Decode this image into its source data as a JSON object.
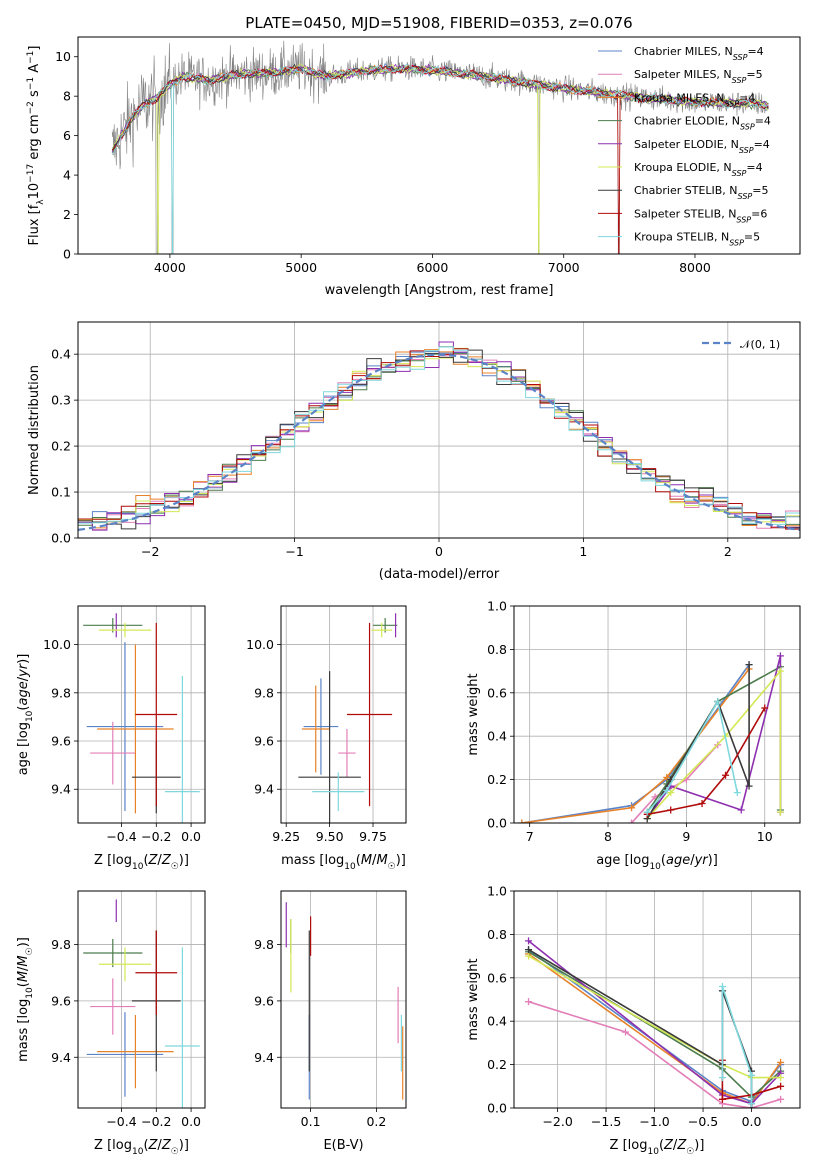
{
  "figure": {
    "title": "PLATE=0450, MJD=51908, FIBERID=0353, z=0.076"
  },
  "colors": {
    "Chabrier MILES": "#5b84c8",
    "Salpeter MILES": "#e37fb8",
    "Kroupa MILES": "#e8822a",
    "Chabrier ELODIE": "#4c7c4c",
    "Salpeter ELODIE": "#8e2fb0",
    "Kroupa ELODIE": "#d4e856",
    "Chabrier STELIB": "#3a3a3a",
    "Salpeter STELIB": "#b00a0a",
    "Kroupa STELIB": "#7fd8de",
    "data": "#808080",
    "gaussian": "#5b84c8"
  },
  "chart_data": [
    {
      "type": "line",
      "name": "spectrum",
      "title": "PLATE=0450, MJD=51908, FIBERID=0353, z=0.076",
      "xlabel": "wavelength [Angstrom, rest frame]",
      "ylabel": "Flux [f_λ 10^-17 erg cm^-2 s^-1 A^-1]",
      "xlim": [
        3300,
        8800
      ],
      "ylim": [
        0,
        11
      ],
      "xticks": [
        "4000",
        "5000",
        "6000",
        "7000",
        "8000"
      ],
      "yticks": [
        "0",
        "2",
        "4",
        "6",
        "8",
        "10"
      ],
      "legend_position": "right",
      "legend": [
        {
          "label": "Chabrier MILES, N",
          "sub": "SSP",
          "tail": "=4"
        },
        {
          "label": "Salpeter MILES, N",
          "sub": "SSP",
          "tail": "=5"
        },
        {
          "label": "Kroupa MILES, N",
          "sub": "SSP",
          "tail": "=4"
        },
        {
          "label": "Chabrier ELODIE, N",
          "sub": "SSP",
          "tail": "=4"
        },
        {
          "label": "Salpeter ELODIE, N",
          "sub": "SSP",
          "tail": "=4"
        },
        {
          "label": "Kroupa ELODIE, N",
          "sub": "SSP",
          "tail": "=4"
        },
        {
          "label": "Chabrier STELIB, N",
          "sub": "SSP",
          "tail": "=5"
        },
        {
          "label": "Salpeter STELIB, N",
          "sub": "SSP",
          "tail": "=6"
        },
        {
          "label": "Kroupa STELIB, N",
          "sub": "SSP",
          "tail": "=5"
        }
      ],
      "continuum": [
        [
          3560,
          5.2
        ],
        [
          3700,
          6.8
        ],
        [
          3800,
          7.6
        ],
        [
          3900,
          7.9
        ],
        [
          4000,
          8.6
        ],
        [
          4100,
          9.0
        ],
        [
          4300,
          8.8
        ],
        [
          4500,
          9.1
        ],
        [
          4800,
          9.2
        ],
        [
          5000,
          9.4
        ],
        [
          5200,
          9.0
        ],
        [
          5500,
          9.3
        ],
        [
          5800,
          9.4
        ],
        [
          6000,
          9.3
        ],
        [
          6300,
          9.1
        ],
        [
          6600,
          8.8
        ],
        [
          7000,
          8.4
        ],
        [
          7500,
          8.0
        ],
        [
          8000,
          7.7
        ],
        [
          8500,
          7.6
        ],
        [
          8550,
          7.5
        ]
      ]
    },
    {
      "type": "histogram",
      "name": "residuals",
      "xlabel": "(data-model)/error",
      "ylabel": "Normed distribution",
      "xlim": [
        -2.5,
        2.5
      ],
      "ylim": [
        0,
        0.47
      ],
      "xticks": [
        "−2",
        "−1",
        "0",
        "1",
        "2"
      ],
      "yticks": [
        "0.0",
        "0.1",
        "0.2",
        "0.3",
        "0.4"
      ],
      "grid": true,
      "legend_position": "top-right",
      "legend_label": "𝒩(0, 1)",
      "bin_width": 0.1
    },
    {
      "type": "scatter",
      "name": "age-vs-Z",
      "xlabel": "Z [log10(Z/Z☉)]",
      "ylabel": "age [log10(age/yr)]",
      "xlim": [
        -0.65,
        0.08
      ],
      "ylim": [
        9.26,
        10.16
      ],
      "xticks": [
        "−0.4",
        "−0.2",
        "0.0"
      ],
      "yticks": [
        "9.4",
        "9.6",
        "9.8",
        "10.0"
      ],
      "grid": true,
      "points": [
        {
          "model": "Chabrier MILES",
          "x": -0.38,
          "y": 9.66,
          "xerr": 0.22,
          "yerr": 0.35
        },
        {
          "model": "Salpeter MILES",
          "x": -0.45,
          "y": 9.55,
          "xerr": 0.13,
          "yerr": 0.13
        },
        {
          "model": "Kroupa MILES",
          "x": -0.32,
          "y": 9.65,
          "xerr": 0.22,
          "yerr": 0.35
        },
        {
          "model": "Chabrier ELODIE",
          "x": -0.45,
          "y": 10.08,
          "xerr": 0.17,
          "yerr": 0.03
        },
        {
          "model": "Salpeter ELODIE",
          "x": -0.43,
          "y": 10.08,
          "xerr": 0.0,
          "yerr": 0.05
        },
        {
          "model": "Kroupa ELODIE",
          "x": -0.38,
          "y": 10.06,
          "xerr": 0.15,
          "yerr": 0.03
        },
        {
          "model": "Chabrier STELIB",
          "x": -0.2,
          "y": 9.45,
          "xerr": 0.14,
          "yerr": 0.15
        },
        {
          "model": "Salpeter STELIB",
          "x": -0.2,
          "y": 9.71,
          "xerr": 0.12,
          "yerr": 0.38
        },
        {
          "model": "Kroupa STELIB",
          "x": -0.05,
          "y": 9.39,
          "xerr": 0.1,
          "yerr": 0.48
        }
      ]
    },
    {
      "type": "scatter",
      "name": "age-vs-mass",
      "xlabel": "mass [log10(M/M☉)]",
      "ylabel": "",
      "xlim": [
        9.22,
        9.94
      ],
      "ylim": [
        9.26,
        10.16
      ],
      "xticks": [
        "9.25",
        "9.50",
        "9.75"
      ],
      "yticks": [
        "9.4",
        "9.6",
        "9.8",
        "10.0"
      ],
      "grid": true,
      "points": [
        {
          "model": "Chabrier MILES",
          "x": 9.45,
          "y": 9.66,
          "xerr": 0.1,
          "yerr": 0.2
        },
        {
          "model": "Salpeter MILES",
          "x": 9.6,
          "y": 9.55,
          "xerr": 0.05,
          "yerr": 0.1
        },
        {
          "model": "Kroupa MILES",
          "x": 9.42,
          "y": 9.65,
          "xerr": 0.08,
          "yerr": 0.18
        },
        {
          "model": "Chabrier ELODIE",
          "x": 9.82,
          "y": 10.08,
          "xerr": 0.07,
          "yerr": 0.03
        },
        {
          "model": "Salpeter ELODIE",
          "x": 9.88,
          "y": 10.08,
          "xerr": 0.0,
          "yerr": 0.05
        },
        {
          "model": "Kroupa ELODIE",
          "x": 9.8,
          "y": 10.06,
          "xerr": 0.06,
          "yerr": 0.03
        },
        {
          "model": "Chabrier STELIB",
          "x": 9.5,
          "y": 9.45,
          "xerr": 0.18,
          "yerr": 0.44
        },
        {
          "model": "Salpeter STELIB",
          "x": 9.73,
          "y": 9.71,
          "xerr": 0.13,
          "yerr": 0.38
        },
        {
          "model": "Kroupa STELIB",
          "x": 9.55,
          "y": 9.39,
          "xerr": 0.15,
          "yerr": 0.08
        }
      ]
    },
    {
      "type": "line",
      "name": "mass-weight-vs-age",
      "xlabel": "age [log10(age/yr)]",
      "ylabel": "mass weight",
      "xlim": [
        6.8,
        10.45
      ],
      "ylim": [
        0,
        1.0
      ],
      "xticks": [
        "7",
        "8",
        "9",
        "10"
      ],
      "yticks": [
        "0.0",
        "0.2",
        "0.4",
        "0.6",
        "0.8",
        "1.0"
      ],
      "grid": true,
      "series": [
        {
          "model": "Chabrier MILES",
          "x": [
            6.9,
            8.3,
            8.75,
            9.8
          ],
          "y": [
            0.0,
            0.08,
            0.2,
            0.73
          ]
        },
        {
          "model": "Kroupa MILES",
          "x": [
            6.9,
            8.3,
            8.75,
            9.8
          ],
          "y": [
            0.0,
            0.07,
            0.21,
            0.71
          ]
        },
        {
          "model": "Salpeter MILES",
          "x": [
            8.3,
            8.6,
            9.0,
            9.4
          ],
          "y": [
            0.0,
            0.12,
            0.2,
            0.36
          ]
        },
        {
          "model": "Chabrier ELODIE",
          "x": [
            8.5,
            8.75,
            9.4,
            10.2,
            10.2
          ],
          "y": [
            0.05,
            0.18,
            0.56,
            0.72,
            0.06
          ]
        },
        {
          "model": "Salpeter ELODIE",
          "x": [
            8.5,
            8.8,
            9.7,
            10.2,
            10.2
          ],
          "y": [
            0.02,
            0.17,
            0.06,
            0.77,
            0.05
          ]
        },
        {
          "model": "Kroupa ELODIE",
          "x": [
            8.5,
            8.8,
            9.5,
            10.2,
            10.2
          ],
          "y": [
            0.02,
            0.14,
            0.4,
            0.7,
            0.05
          ]
        },
        {
          "model": "Chabrier STELIB",
          "x": [
            8.5,
            8.8,
            9.4,
            9.8,
            9.8
          ],
          "y": [
            0.02,
            0.2,
            0.56,
            0.17,
            0.73
          ]
        },
        {
          "model": "Salpeter STELIB",
          "x": [
            8.5,
            8.8,
            9.2,
            9.5,
            10.0
          ],
          "y": [
            0.04,
            0.06,
            0.09,
            0.22,
            0.53
          ]
        },
        {
          "model": "Kroupa STELIB",
          "x": [
            8.5,
            8.75,
            9.4,
            9.65
          ],
          "y": [
            0.05,
            0.15,
            0.56,
            0.14
          ]
        }
      ]
    },
    {
      "type": "scatter",
      "name": "mass-vs-Z",
      "xlabel": "Z [log10(Z/Z☉)]",
      "ylabel": "mass [log10(M/M☉)]",
      "xlim": [
        -0.65,
        0.08
      ],
      "ylim": [
        9.22,
        9.99
      ],
      "xticks": [
        "−0.4",
        "−0.2",
        "0.0"
      ],
      "yticks": [
        "9.4",
        "9.6",
        "9.8"
      ],
      "grid": true,
      "points": [
        {
          "model": "Chabrier MILES",
          "x": -0.38,
          "y": 9.41,
          "xerr": 0.22,
          "yerr": 0.15
        },
        {
          "model": "Salpeter MILES",
          "x": -0.45,
          "y": 9.58,
          "xerr": 0.13,
          "yerr": 0.1
        },
        {
          "model": "Kroupa MILES",
          "x": -0.32,
          "y": 9.42,
          "xerr": 0.22,
          "yerr": 0.13
        },
        {
          "model": "Chabrier ELODIE",
          "x": -0.45,
          "y": 9.77,
          "xerr": 0.17,
          "yerr": 0.05
        },
        {
          "model": "Salpeter ELODIE",
          "x": -0.43,
          "y": 9.92,
          "xerr": 0.0,
          "yerr": 0.04
        },
        {
          "model": "Kroupa ELODIE",
          "x": -0.38,
          "y": 9.73,
          "xerr": 0.15,
          "yerr": 0.06
        },
        {
          "model": "Chabrier STELIB",
          "x": -0.2,
          "y": 9.6,
          "xerr": 0.14,
          "yerr": 0.25
        },
        {
          "model": "Salpeter STELIB",
          "x": -0.2,
          "y": 9.7,
          "xerr": 0.12,
          "yerr": 0.15
        },
        {
          "model": "Kroupa STELIB",
          "x": -0.05,
          "y": 9.44,
          "xerr": 0.1,
          "yerr": 0.35
        }
      ]
    },
    {
      "type": "scatter",
      "name": "mass-vs-ebv",
      "xlabel": "E(B-V)",
      "ylabel": "",
      "xlim": [
        0.055,
        0.245
      ],
      "ylim": [
        9.22,
        9.99
      ],
      "xticks": [
        "0.1",
        "0.2"
      ],
      "yticks": [
        "9.4",
        "9.6",
        "9.8"
      ],
      "grid": true,
      "points": [
        {
          "model": "Chabrier MILES",
          "x": 0.098,
          "y": 9.4,
          "xerr": 0,
          "yerr": 0.15
        },
        {
          "model": "Salpeter MILES",
          "x": 0.233,
          "y": 9.55,
          "xerr": 0,
          "yerr": 0.1
        },
        {
          "model": "Kroupa MILES",
          "x": 0.24,
          "y": 9.38,
          "xerr": 0,
          "yerr": 0.13
        },
        {
          "model": "Chabrier ELODIE",
          "x": 0.07,
          "y": 9.83,
          "xerr": 0,
          "yerr": 0.06
        },
        {
          "model": "Salpeter ELODIE",
          "x": 0.063,
          "y": 9.87,
          "xerr": 0,
          "yerr": 0.08
        },
        {
          "model": "Kroupa ELODIE",
          "x": 0.07,
          "y": 9.76,
          "xerr": 0,
          "yerr": 0.13
        },
        {
          "model": "Chabrier STELIB",
          "x": 0.098,
          "y": 9.6,
          "xerr": 0,
          "yerr": 0.25
        },
        {
          "model": "Salpeter STELIB",
          "x": 0.1,
          "y": 9.83,
          "xerr": 0,
          "yerr": 0.07
        },
        {
          "model": "Kroupa STELIB",
          "x": 0.238,
          "y": 9.45,
          "xerr": 0,
          "yerr": 0.1
        }
      ]
    },
    {
      "type": "line",
      "name": "mass-weight-vs-Z",
      "xlabel": "Z [log10(Z/Z☉)]",
      "ylabel": "mass weight",
      "xlim": [
        -2.45,
        0.5
      ],
      "ylim": [
        0,
        1.0
      ],
      "xticks": [
        "−2.0",
        "−1.5",
        "−1.0",
        "−0.5",
        "0.0"
      ],
      "yticks": [
        "0.0",
        "0.2",
        "0.4",
        "0.6",
        "0.8",
        "1.0"
      ],
      "grid": true,
      "series": [
        {
          "model": "Chabrier MILES",
          "x": [
            -2.3,
            -0.3,
            0.0,
            0.3
          ],
          "y": [
            0.73,
            0.08,
            0.03,
            0.2
          ]
        },
        {
          "model": "Kroupa MILES",
          "x": [
            -2.3,
            -0.3,
            0.0,
            0.3
          ],
          "y": [
            0.71,
            0.07,
            0.02,
            0.21
          ]
        },
        {
          "model": "Salpeter MILES",
          "x": [
            -2.3,
            -1.3,
            -0.3,
            0.0,
            0.3
          ],
          "y": [
            0.49,
            0.35,
            0.02,
            0.0,
            0.04
          ]
        },
        {
          "model": "Chabrier ELODIE",
          "x": [
            -2.3,
            -0.3,
            0.0,
            0.3
          ],
          "y": [
            0.72,
            0.18,
            0.05,
            0.17
          ]
        },
        {
          "model": "Salpeter ELODIE",
          "x": [
            -2.3,
            -0.3,
            0.0,
            0.3
          ],
          "y": [
            0.77,
            0.06,
            0.02,
            0.16
          ]
        },
        {
          "model": "Kroupa ELODIE",
          "x": [
            -2.3,
            -0.3,
            0.0,
            0.3
          ],
          "y": [
            0.7,
            0.2,
            0.14,
            0.14
          ]
        },
        {
          "model": "Chabrier STELIB",
          "x": [
            -2.3,
            -0.3,
            -0.3,
            0.0,
            0.0
          ],
          "y": [
            0.73,
            0.2,
            0.54,
            0.17,
            0.0
          ]
        },
        {
          "model": "Salpeter STELIB",
          "x": [
            -0.3,
            -0.3,
            0.0,
            0.3
          ],
          "y": [
            0.22,
            0.04,
            0.06,
            0.1
          ]
        },
        {
          "model": "Kroupa STELIB",
          "x": [
            -0.3,
            -0.3,
            0.0,
            0.0
          ],
          "y": [
            0.14,
            0.56,
            0.15,
            0.02
          ]
        }
      ]
    }
  ]
}
